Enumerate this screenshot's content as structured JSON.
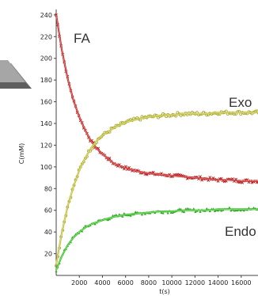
{
  "chart_data": {
    "type": "line",
    "title": "",
    "xlabel": "t(s)",
    "ylabel": "C(mM)",
    "xlim": [
      0,
      18000
    ],
    "ylim": [
      0,
      245
    ],
    "x_tick_labels": [
      "2000",
      "4000",
      "6000",
      "8000",
      "10000",
      "12000",
      "14000",
      "16000"
    ],
    "y_tick_labels": [
      "20",
      "40",
      "60",
      "80",
      "100",
      "120",
      "140",
      "160",
      "180",
      "200",
      "220",
      "240"
    ],
    "grid": false,
    "legend": "none",
    "annotations": [
      "FA",
      "Exo",
      "Endo"
    ],
    "series": [
      {
        "name": "FA",
        "color": "#c62828",
        "marker_color": "#b71c1c",
        "x": [
          0,
          500,
          1000,
          1500,
          2000,
          2500,
          3000,
          3500,
          4000,
          5000,
          6000,
          7000,
          8000,
          9000,
          10000,
          11000,
          12000,
          13000,
          14000,
          15000,
          16000,
          17000,
          18000
        ],
        "y": [
          240,
          207,
          181,
          161,
          146,
          134,
          124,
          117,
          112,
          103,
          99,
          96,
          94,
          93,
          92,
          91,
          90,
          89,
          88,
          88,
          87,
          87,
          87
        ]
      },
      {
        "name": "Exo",
        "color": "#c0bf3a",
        "marker_color": "#a5a320",
        "x": [
          0,
          500,
          1000,
          1500,
          2000,
          2500,
          3000,
          3500,
          4000,
          5000,
          6000,
          7000,
          8000,
          9000,
          10000,
          11000,
          12000,
          13000,
          14000,
          15000,
          16000,
          17000,
          18000
        ],
        "y": [
          10,
          40,
          64,
          82,
          97,
          108,
          117,
          124,
          129,
          136,
          141,
          144,
          146,
          147,
          148,
          149,
          149,
          149,
          150,
          150,
          150,
          150,
          150
        ]
      },
      {
        "name": "Endo",
        "color": "#3cbf2a",
        "marker_color": "#2ea81f",
        "x": [
          0,
          500,
          1000,
          1500,
          2000,
          2500,
          3000,
          3500,
          4000,
          5000,
          6000,
          7000,
          8000,
          9000,
          10000,
          11000,
          12000,
          13000,
          14000,
          15000,
          16000,
          17000,
          18000
        ],
        "y": [
          5,
          18,
          28,
          35,
          40,
          44,
          47,
          49,
          51,
          54,
          56,
          57,
          58,
          59,
          59,
          60,
          60,
          60,
          61,
          61,
          61,
          61,
          61
        ]
      }
    ]
  },
  "decor": {
    "prism_color": "#8a8a8a"
  }
}
